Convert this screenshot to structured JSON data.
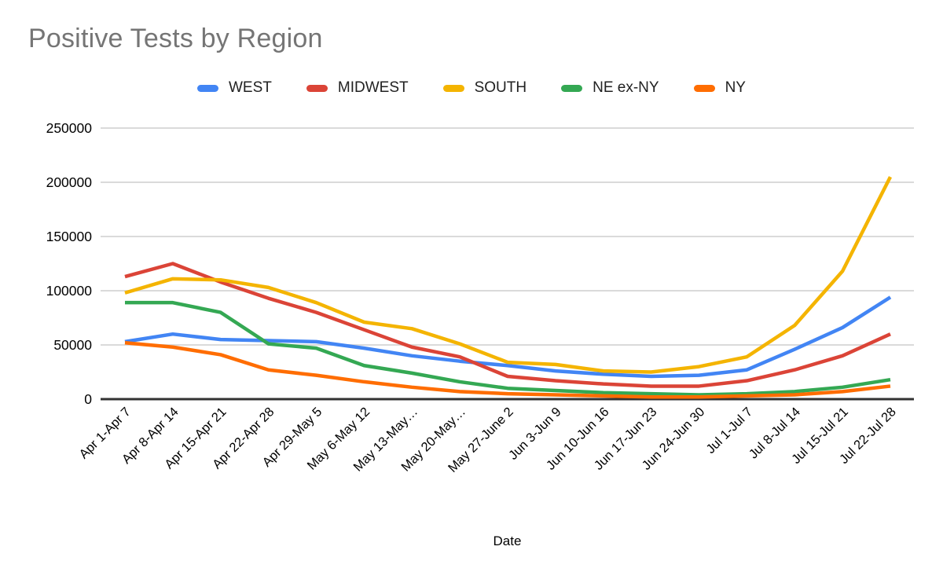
{
  "title": "Positive Tests by Region",
  "axis": {
    "x_title": "Date"
  },
  "colors": {
    "background": "#ffffff",
    "title_text": "#757575",
    "axis_text": "#000000",
    "gridline": "#dadada",
    "baseline": "#333333",
    "west": "#4285F4",
    "midwest": "#DB4437",
    "south": "#F4B400",
    "ne_ex_ny": "#34A853",
    "ny": "#FF6D01"
  },
  "chart_data": {
    "type": "line",
    "title": "Positive Tests by Region",
    "xlabel": "Date",
    "ylabel": "",
    "ylim": [
      0,
      250000
    ],
    "ytick_step": 50000,
    "ytick_labels": [
      "0",
      "50000",
      "100000",
      "150000",
      "200000",
      "250000"
    ],
    "grid": true,
    "legend_position": "top",
    "categories": [
      "Apr 1-Apr 7",
      "Apr 8-Apr 14",
      "Apr 15-Apr 21",
      "Apr 22-Apr 28",
      "Apr 29-May 5",
      "May 6-May 12",
      "May 13-May…",
      "May 20-May…",
      "May 27-June 2",
      "Jun 3-Jun 9",
      "Jun 10-Jun 16",
      "Jun 17-Jun 23",
      "Jun 24-Jun 30",
      "Jul 1-Jul 7",
      "Jul 8-Jul 14",
      "Jul 15-Jul 21",
      "Jul 22-Jul 28"
    ],
    "series": [
      {
        "name": "WEST",
        "color": "#4285F4",
        "values": [
          53000,
          60000,
          55000,
          54000,
          53000,
          47000,
          40000,
          35000,
          31000,
          26000,
          23000,
          21000,
          22000,
          27000,
          46000,
          66000,
          94000
        ]
      },
      {
        "name": "MIDWEST",
        "color": "#DB4437",
        "values": [
          113000,
          125000,
          108000,
          93000,
          80000,
          64000,
          48000,
          39000,
          21000,
          17000,
          14000,
          12000,
          12000,
          17000,
          27000,
          40000,
          60000
        ]
      },
      {
        "name": "SOUTH",
        "color": "#F4B400",
        "values": [
          98000,
          111000,
          110000,
          103000,
          89000,
          71000,
          65000,
          51000,
          34000,
          32000,
          26000,
          25000,
          30000,
          39000,
          68000,
          118000,
          205000
        ]
      },
      {
        "name": "NE ex-NY",
        "color": "#34A853",
        "values": [
          89000,
          89000,
          80000,
          51000,
          47000,
          31000,
          24000,
          16000,
          10000,
          8000,
          6000,
          5000,
          4000,
          5000,
          7000,
          11000,
          18000
        ]
      },
      {
        "name": "NY",
        "color": "#FF6D01",
        "values": [
          52000,
          48000,
          41000,
          27000,
          22000,
          16000,
          11000,
          7000,
          5000,
          4000,
          3000,
          2000,
          2000,
          3000,
          4000,
          7000,
          12000
        ]
      }
    ]
  }
}
